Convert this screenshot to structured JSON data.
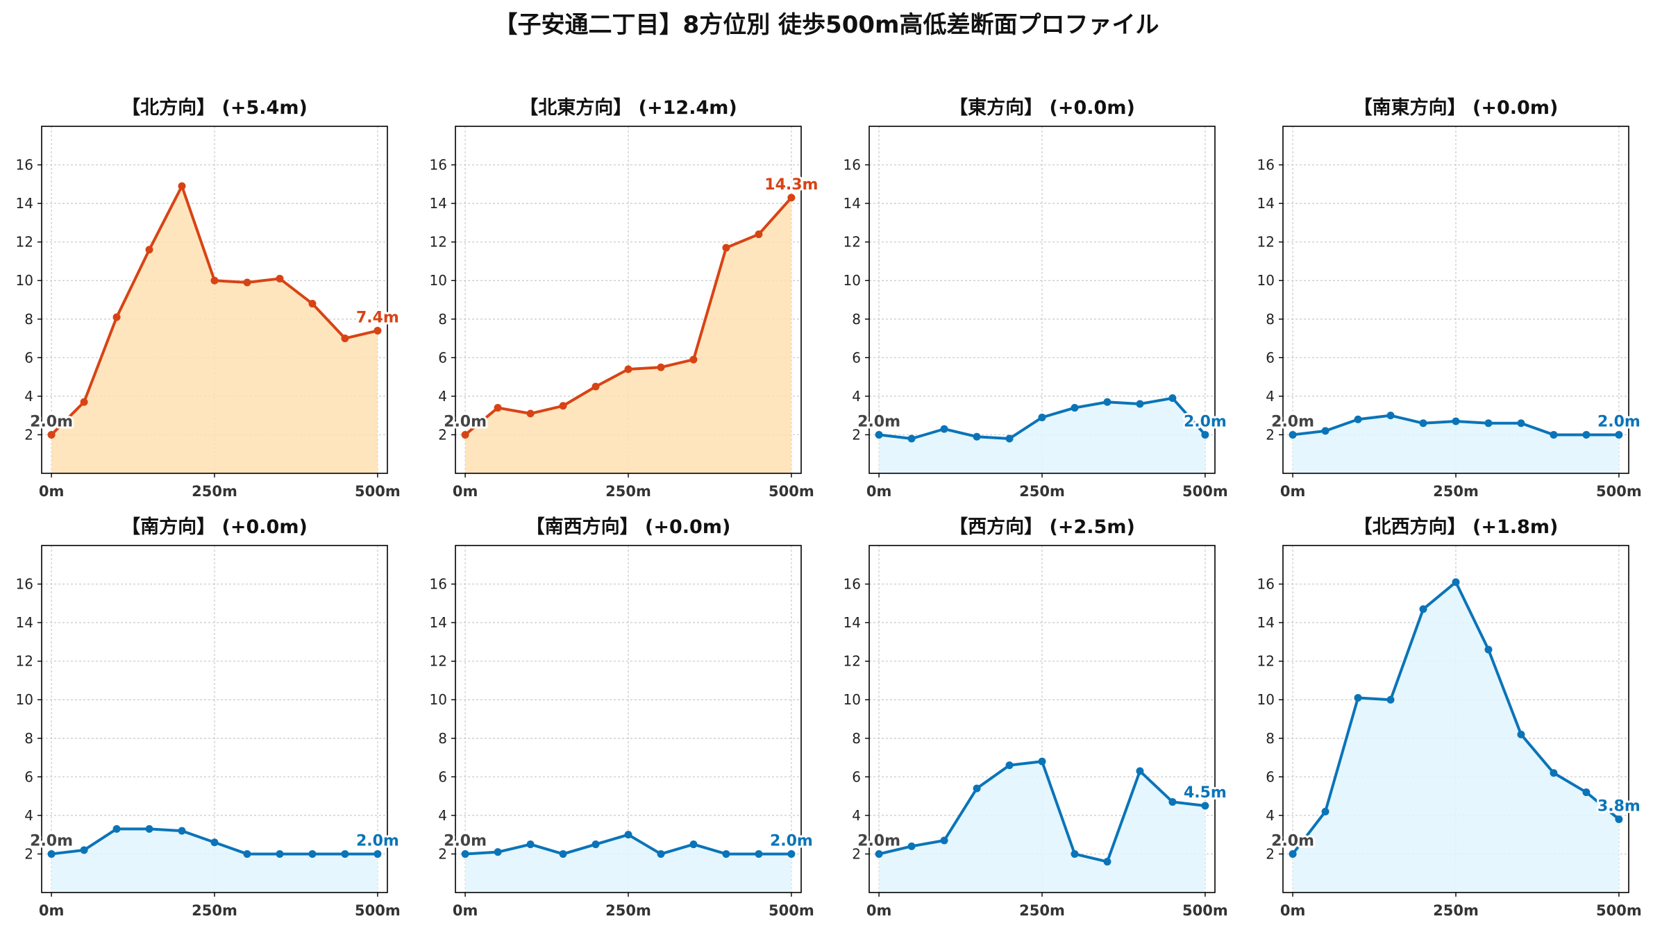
{
  "title": "【子安通二丁目】8方位別 徒歩500m高低差断面プロファイル",
  "colors": {
    "rise_line": "#d84315",
    "rise_fill": "#ffe0b2",
    "flat_line": "#0a74b8",
    "flat_fill": "#e1f5fe",
    "start_label": "#444444",
    "grid": "#c8c8c8"
  },
  "chart_data": [
    {
      "type": "area",
      "title": "【北方向】 (+5.4m)",
      "style": "rise",
      "x": [
        0,
        50,
        100,
        150,
        200,
        250,
        300,
        350,
        400,
        450,
        500
      ],
      "y": [
        2.0,
        3.7,
        8.1,
        11.6,
        14.9,
        10.0,
        9.9,
        10.1,
        8.8,
        7.0,
        7.4
      ],
      "start_label": "2.0m",
      "end_label": "7.4m",
      "xticks": [
        "0m",
        "250m",
        "500m"
      ],
      "yticks": [
        2,
        4,
        6,
        8,
        10,
        12,
        14,
        16
      ],
      "xlim": [
        -15,
        515
      ],
      "ylim": [
        0,
        18
      ],
      "grid": true
    },
    {
      "type": "area",
      "title": "【北東方向】 (+12.4m)",
      "style": "rise",
      "x": [
        0,
        50,
        100,
        150,
        200,
        250,
        300,
        350,
        400,
        450,
        500
      ],
      "y": [
        2.0,
        3.4,
        3.1,
        3.5,
        4.5,
        5.4,
        5.5,
        5.9,
        11.7,
        12.4,
        14.3
      ],
      "start_label": "2.0m",
      "end_label": "14.3m",
      "xticks": [
        "0m",
        "250m",
        "500m"
      ],
      "yticks": [
        2,
        4,
        6,
        8,
        10,
        12,
        14,
        16
      ],
      "xlim": [
        -15,
        515
      ],
      "ylim": [
        0,
        18
      ],
      "grid": true
    },
    {
      "type": "area",
      "title": "【東方向】 (+0.0m)",
      "style": "flat",
      "x": [
        0,
        50,
        100,
        150,
        200,
        250,
        300,
        350,
        400,
        450,
        500
      ],
      "y": [
        2.0,
        1.8,
        2.3,
        1.9,
        1.8,
        2.9,
        3.4,
        3.7,
        3.6,
        3.9,
        2.0
      ],
      "start_label": "2.0m",
      "end_label": "2.0m",
      "xticks": [
        "0m",
        "250m",
        "500m"
      ],
      "yticks": [
        2,
        4,
        6,
        8,
        10,
        12,
        14,
        16
      ],
      "xlim": [
        -15,
        515
      ],
      "ylim": [
        0,
        18
      ],
      "grid": true
    },
    {
      "type": "area",
      "title": "【南東方向】 (+0.0m)",
      "style": "flat",
      "x": [
        0,
        50,
        100,
        150,
        200,
        250,
        300,
        350,
        400,
        450,
        500
      ],
      "y": [
        2.0,
        2.2,
        2.8,
        3.0,
        2.6,
        2.7,
        2.6,
        2.6,
        2.0,
        2.0,
        2.0
      ],
      "start_label": "2.0m",
      "end_label": "2.0m",
      "xticks": [
        "0m",
        "250m",
        "500m"
      ],
      "yticks": [
        2,
        4,
        6,
        8,
        10,
        12,
        14,
        16
      ],
      "xlim": [
        -15,
        515
      ],
      "ylim": [
        0,
        18
      ],
      "grid": true
    },
    {
      "type": "area",
      "title": "【南方向】 (+0.0m)",
      "style": "flat",
      "x": [
        0,
        50,
        100,
        150,
        200,
        250,
        300,
        350,
        400,
        450,
        500
      ],
      "y": [
        2.0,
        2.2,
        3.3,
        3.3,
        3.2,
        2.6,
        2.0,
        2.0,
        2.0,
        2.0,
        2.0
      ],
      "start_label": "2.0m",
      "end_label": "2.0m",
      "xticks": [
        "0m",
        "250m",
        "500m"
      ],
      "yticks": [
        2,
        4,
        6,
        8,
        10,
        12,
        14,
        16
      ],
      "xlim": [
        -15,
        515
      ],
      "ylim": [
        0,
        18
      ],
      "grid": true
    },
    {
      "type": "area",
      "title": "【南西方向】 (+0.0m)",
      "style": "flat",
      "x": [
        0,
        50,
        100,
        150,
        200,
        250,
        300,
        350,
        400,
        450,
        500
      ],
      "y": [
        2.0,
        2.1,
        2.5,
        2.0,
        2.5,
        3.0,
        2.0,
        2.5,
        2.0,
        2.0,
        2.0
      ],
      "start_label": "2.0m",
      "end_label": "2.0m",
      "xticks": [
        "0m",
        "250m",
        "500m"
      ],
      "yticks": [
        2,
        4,
        6,
        8,
        10,
        12,
        14,
        16
      ],
      "xlim": [
        -15,
        515
      ],
      "ylim": [
        0,
        18
      ],
      "grid": true
    },
    {
      "type": "area",
      "title": "【西方向】 (+2.5m)",
      "style": "flat",
      "x": [
        0,
        50,
        100,
        150,
        200,
        250,
        300,
        350,
        400,
        450,
        500
      ],
      "y": [
        2.0,
        2.4,
        2.7,
        5.4,
        6.6,
        6.8,
        2.0,
        1.6,
        6.3,
        4.7,
        4.5
      ],
      "start_label": "2.0m",
      "end_label": "4.5m",
      "xticks": [
        "0m",
        "250m",
        "500m"
      ],
      "yticks": [
        2,
        4,
        6,
        8,
        10,
        12,
        14,
        16
      ],
      "xlim": [
        -15,
        515
      ],
      "ylim": [
        0,
        18
      ],
      "grid": true
    },
    {
      "type": "area",
      "title": "【北西方向】 (+1.8m)",
      "style": "flat",
      "x": [
        0,
        50,
        100,
        150,
        200,
        250,
        300,
        350,
        400,
        450,
        500
      ],
      "y": [
        2.0,
        4.2,
        10.1,
        10.0,
        14.7,
        16.1,
        12.6,
        8.2,
        6.2,
        5.2,
        3.8
      ],
      "start_label": "2.0m",
      "end_label": "3.8m",
      "xticks": [
        "0m",
        "250m",
        "500m"
      ],
      "yticks": [
        2,
        4,
        6,
        8,
        10,
        12,
        14,
        16
      ],
      "xlim": [
        -15,
        515
      ],
      "ylim": [
        0,
        18
      ],
      "grid": true
    }
  ]
}
